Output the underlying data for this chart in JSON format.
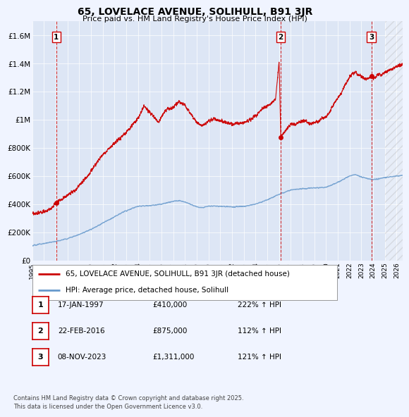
{
  "title": "65, LOVELACE AVENUE, SOLIHULL, B91 3JR",
  "subtitle": "Price paid vs. HM Land Registry's House Price Index (HPI)",
  "background_color": "#f0f4ff",
  "plot_bg_color": "#dde6f5",
  "ylim": [
    0,
    1700000
  ],
  "xlim_start": 1995,
  "xlim_end": 2026.5,
  "yticks": [
    0,
    200000,
    400000,
    600000,
    800000,
    1000000,
    1200000,
    1400000,
    1600000
  ],
  "ytick_labels": [
    "£0",
    "£200K",
    "£400K",
    "£600K",
    "£800K",
    "£1M",
    "£1.2M",
    "£1.4M",
    "£1.6M"
  ],
  "xticks": [
    1995,
    1996,
    1997,
    1998,
    1999,
    2000,
    2001,
    2002,
    2003,
    2004,
    2005,
    2006,
    2007,
    2008,
    2009,
    2010,
    2011,
    2012,
    2013,
    2014,
    2015,
    2016,
    2017,
    2018,
    2019,
    2020,
    2021,
    2022,
    2023,
    2024,
    2025,
    2026
  ],
  "sales": [
    {
      "year": 1997.04,
      "price": 410000,
      "label": "1"
    },
    {
      "year": 2016.14,
      "price": 875000,
      "label": "2"
    },
    {
      "year": 2023.85,
      "price": 1311000,
      "label": "3"
    }
  ],
  "legend_line1": "65, LOVELACE AVENUE, SOLIHULL, B91 3JR (detached house)",
  "legend_line2": "HPI: Average price, detached house, Solihull",
  "table_rows": [
    {
      "num": "1",
      "date": "17-JAN-1997",
      "price": "£410,000",
      "hpi": "222% ↑ HPI"
    },
    {
      "num": "2",
      "date": "22-FEB-2016",
      "price": "£875,000",
      "hpi": "112% ↑ HPI"
    },
    {
      "num": "3",
      "date": "08-NOV-2023",
      "price": "£1,311,000",
      "hpi": "121% ↑ HPI"
    }
  ],
  "footer": "Contains HM Land Registry data © Crown copyright and database right 2025.\nThis data is licensed under the Open Government Licence v3.0.",
  "red_line_color": "#cc0000",
  "blue_line_color": "#6699cc",
  "dot_color": "#cc0000",
  "vline_color": "#cc0000",
  "hatch_start": 2025.0
}
